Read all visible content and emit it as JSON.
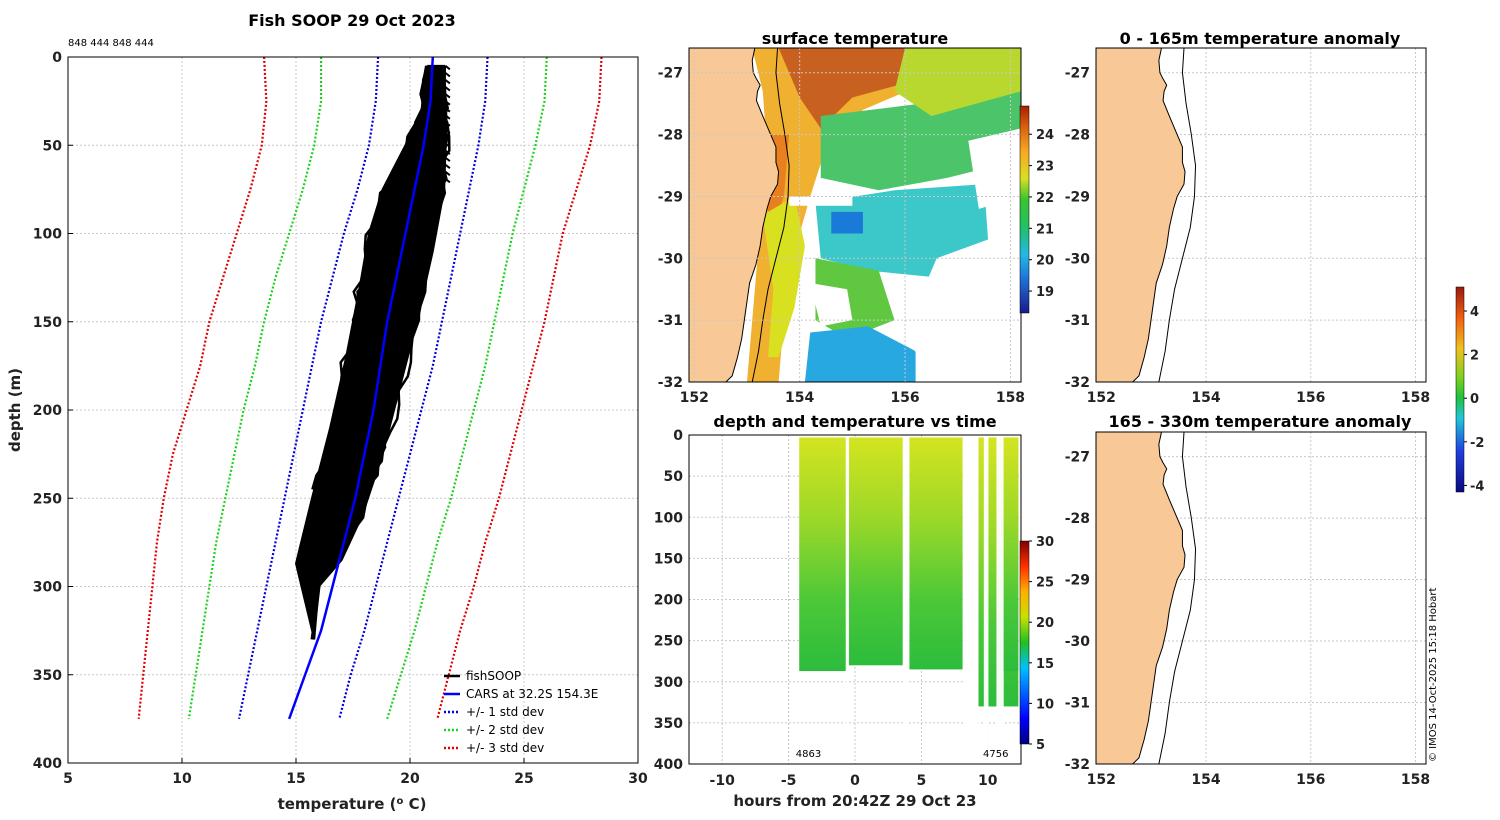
{
  "figure": {
    "ids_text": "848 444 848 444",
    "copyright": "© IMOS 14-Oct-2025 15:18 Hobart",
    "colors": {
      "land": "#f8c896",
      "coast": "#000000"
    }
  },
  "chart_data": [
    {
      "id": "profiles",
      "type": "line",
      "title": "Fish SOOP 29 Oct 2023",
      "xlabel": "temperature (",
      "xlabel_sup": "o",
      "xlabel_end": " C)",
      "ylabel": "depth (m)",
      "xlim": [
        5,
        30
      ],
      "ylim": [
        0,
        400
      ],
      "xticks": [
        "5",
        "10",
        "15",
        "20",
        "25",
        "30"
      ],
      "yticks": [
        "0",
        "50",
        "100",
        "150",
        "200",
        "250",
        "300",
        "350",
        "400"
      ],
      "legend": [
        "fishSOOP",
        "CARS at 32.2S 154.3E",
        "+/- 1 std dev",
        "+/- 2 std dev",
        "+/- 3 std dev"
      ],
      "legend_position": "bottom-right",
      "depth": [
        0,
        25,
        50,
        75,
        100,
        125,
        150,
        175,
        200,
        225,
        250,
        275,
        300,
        325,
        350,
        375
      ],
      "cars_mean": [
        21.0,
        20.9,
        20.6,
        20.2,
        19.8,
        19.4,
        19.0,
        18.7,
        18.4,
        18.0,
        17.6,
        17.1,
        16.6,
        16.1,
        15.4,
        14.7
      ],
      "std1_low": [
        18.6,
        18.5,
        18.2,
        17.7,
        17.1,
        16.6,
        16.1,
        15.7,
        15.3,
        14.9,
        14.5,
        14.1,
        13.7,
        13.3,
        12.9,
        12.5
      ],
      "std1_high": [
        23.4,
        23.3,
        23.0,
        22.6,
        22.2,
        21.8,
        21.4,
        21.0,
        20.5,
        20.0,
        19.5,
        19.0,
        18.5,
        18.0,
        17.4,
        16.9
      ],
      "std2_low": [
        16.1,
        16.1,
        15.8,
        15.3,
        14.7,
        14.1,
        13.6,
        13.2,
        12.7,
        12.3,
        11.9,
        11.5,
        11.2,
        10.9,
        10.6,
        10.3
      ],
      "std2_high": [
        26.0,
        25.9,
        25.5,
        25.0,
        24.5,
        24.1,
        23.7,
        23.3,
        22.8,
        22.3,
        21.8,
        21.2,
        20.7,
        20.2,
        19.6,
        19.0
      ],
      "std3_low": [
        13.6,
        13.7,
        13.5,
        13.0,
        12.4,
        11.8,
        11.2,
        10.8,
        10.2,
        9.6,
        9.2,
        8.9,
        8.7,
        8.5,
        8.3,
        8.1
      ],
      "std3_high": [
        28.4,
        28.3,
        27.9,
        27.3,
        26.7,
        26.3,
        25.9,
        25.4,
        24.9,
        24.4,
        23.9,
        23.3,
        22.8,
        22.2,
        21.7,
        21.2
      ],
      "fish_band_left": [
        [
          20.8,
          5
        ],
        [
          20.5,
          30
        ],
        [
          19.8,
          50
        ],
        [
          18.8,
          75
        ],
        [
          18.2,
          100
        ],
        [
          17.8,
          130
        ],
        [
          17.2,
          170
        ],
        [
          16.5,
          210
        ],
        [
          15.7,
          250
        ],
        [
          15.0,
          287
        ]
      ],
      "fish_band_right": [
        [
          21.5,
          5
        ],
        [
          21.6,
          35
        ],
        [
          21.5,
          75
        ],
        [
          21.0,
          110
        ],
        [
          20.3,
          150
        ],
        [
          19.5,
          190
        ],
        [
          18.8,
          225
        ],
        [
          17.9,
          260
        ],
        [
          17.0,
          285
        ],
        [
          16.0,
          300
        ],
        [
          15.8,
          330
        ]
      ]
    },
    {
      "id": "surface_temperature",
      "type": "heatmap",
      "title": "surface temperature",
      "xticks": [
        "152",
        "154",
        "156",
        "158"
      ],
      "yticks": [
        "-27",
        "-28",
        "-29",
        "-30",
        "-31",
        "-32"
      ],
      "xlim": [
        151.9,
        158.2
      ],
      "ylim": [
        -32,
        -26.6
      ],
      "colorbar_ticks": [
        "19",
        "20",
        "21",
        "22",
        "23",
        "24"
      ],
      "colorbar_range": [
        18.3,
        24.9
      ]
    },
    {
      "id": "depth_temp_time",
      "type": "scatter",
      "title": "depth and temperature vs time",
      "xlabel": "hours from 20:42Z 29 Oct 23",
      "xlim": [
        -12.5,
        12.5
      ],
      "ylim": [
        0,
        400
      ],
      "xticks": [
        "-10",
        "-5",
        "0",
        "5",
        "10"
      ],
      "yticks": [
        "0",
        "50",
        "100",
        "150",
        "200",
        "250",
        "300",
        "350",
        "400"
      ],
      "colorbar_ticks": [
        "5",
        "10",
        "15",
        "20",
        "25",
        "30"
      ],
      "colorbar_range": [
        5,
        30
      ],
      "annotations": [
        {
          "text": "4863",
          "x": -3.5
        },
        {
          "text": "4756",
          "x": 10.6
        }
      ],
      "segments": [
        {
          "t0": -4.2,
          "t1": -0.6,
          "maxdepth": 287
        },
        {
          "t0": -0.5,
          "t1": 3.6,
          "maxdepth": 280
        },
        {
          "t0": 4.1,
          "t1": 8.1,
          "maxdepth": 285
        },
        {
          "t0": 9.3,
          "t1": 12.3,
          "maxdepth": 330
        }
      ]
    },
    {
      "id": "anom_0_165",
      "type": "heatmap",
      "title": "0 - 165m temperature anomaly",
      "xticks": [
        "152",
        "154",
        "156",
        "158"
      ],
      "yticks": [
        "-27",
        "-28",
        "-29",
        "-30",
        "-31",
        "-32"
      ],
      "xlim": [
        151.9,
        158.2
      ],
      "ylim": [
        -32,
        -26.6
      ]
    },
    {
      "id": "anom_165_330",
      "type": "heatmap",
      "title": "165 - 330m temperature anomaly",
      "xticks": [
        "152",
        "154",
        "156",
        "158"
      ],
      "yticks": [
        "-27",
        "-28",
        "-29",
        "-30",
        "-31",
        "-32"
      ],
      "xlim": [
        151.9,
        158.2
      ],
      "ylim": [
        -32,
        -26.6
      ]
    },
    {
      "id": "anomaly_colorbar",
      "type": "heatmap",
      "colorbar_ticks": [
        "4",
        "2",
        "0",
        "-2",
        "-4"
      ],
      "colorbar_range": [
        -4.3,
        5.1
      ]
    }
  ]
}
